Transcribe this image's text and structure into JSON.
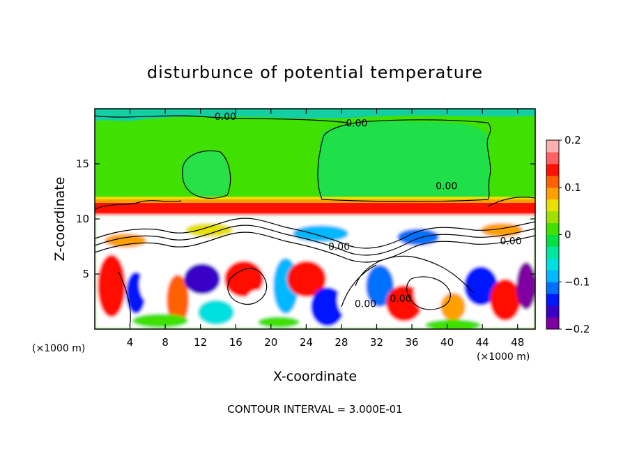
{
  "chart_data": {
    "type": "heatmap",
    "title": "disturbunce of potential temperature",
    "xlabel": "X-coordinate",
    "ylabel": "Z-coordinate",
    "x_unit": "(×1000 m)",
    "x_ticks": [
      4,
      8,
      12,
      16,
      20,
      24,
      28,
      32,
      36,
      40,
      44,
      48
    ],
    "y_ticks": [
      5,
      10,
      15
    ],
    "xlim": [
      0,
      50
    ],
    "ylim": [
      0,
      20
    ],
    "colorbar": {
      "min": -0.2,
      "max": 0.2,
      "tick_labels": [
        "0.2",
        "0.1",
        "0",
        "−0.1",
        "−0.2"
      ],
      "colors": [
        "#7f00a0",
        "#3a00c8",
        "#0018ff",
        "#0070ff",
        "#00b8ff",
        "#00e0e0",
        "#00e8a0",
        "#00e040",
        "#40e000",
        "#a0e000",
        "#e8e000",
        "#ffa000",
        "#ff6000",
        "#ff1000",
        "#ff6060",
        "#ffb0b0"
      ]
    },
    "contour_labels": [
      {
        "text": "0.00",
        "x": 13.6,
        "y": 19.3
      },
      {
        "text": "0.00",
        "x": 28.5,
        "y": 18.7
      },
      {
        "text": "0.00",
        "x": 38.7,
        "y": 13.0
      },
      {
        "text": "0.00",
        "x": 26.5,
        "y": 7.5
      },
      {
        "text": "0.00",
        "x": 29.5,
        "y": 2.3
      },
      {
        "text": "0.00",
        "x": 33.5,
        "y": 2.8
      },
      {
        "text": "0.00",
        "x": 46.0,
        "y": 8.0
      }
    ],
    "contour_interval_note": "CONTOUR INTERVAL = 3.000E-01"
  }
}
